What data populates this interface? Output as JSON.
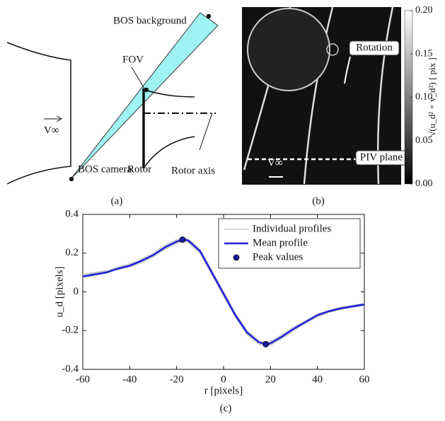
{
  "diagram": {
    "labels": {
      "background": "BOS background",
      "fov": "FOV",
      "freestream": "V∞",
      "rotor": "Rotor",
      "rotor_axis": "Rotor axis",
      "camera": "BOS camera"
    },
    "caption": "(a)"
  },
  "image_panel": {
    "labels": {
      "rotation": "Rotation",
      "piv_plane": "PIV plane",
      "freestream": "V∞"
    },
    "caption": "(b)",
    "colorbar": {
      "label": "√(u_d² + v_d²) [ pix ]",
      "lim": [
        0,
        0.2
      ],
      "ticks": [
        {
          "value": 0,
          "label": "0.00"
        },
        {
          "value": 0.05,
          "label": "0.05"
        },
        {
          "value": 0.1,
          "label": "0.10"
        },
        {
          "value": 0.15,
          "label": "0.15"
        },
        {
          "value": 0.2,
          "label": "0.20"
        }
      ]
    }
  },
  "chart_data": {
    "type": "line",
    "caption": "(c)",
    "xlabel": "r [pixels]",
    "ylabel": "u_d [pixels]",
    "xlim": [
      -60,
      60
    ],
    "ylim": [
      -0.4,
      0.4
    ],
    "xticks": [
      -60,
      -40,
      -20,
      0,
      20,
      40,
      60
    ],
    "yticks": [
      -0.4,
      -0.2,
      0,
      0.2,
      0.4
    ],
    "legend": "upper right",
    "x": [
      -60,
      -55,
      -50,
      -45,
      -40,
      -35,
      -30,
      -25,
      -20,
      -17,
      -15,
      -10,
      -5,
      0,
      5,
      10,
      15,
      18,
      20,
      25,
      30,
      35,
      40,
      45,
      50,
      55,
      60
    ],
    "series": [
      {
        "name": "Individual profiles",
        "color": "#c8c8c8",
        "values": [
          [
            0.07,
            0.085,
            0.1,
            0.125,
            0.14,
            0.17,
            0.2,
            0.24,
            0.27,
            0.28,
            0.27,
            0.22,
            0.11,
            0.0,
            -0.11,
            -0.2,
            -0.25,
            -0.26,
            -0.255,
            -0.22,
            -0.18,
            -0.15,
            -0.115,
            -0.095,
            -0.08,
            -0.07,
            -0.06
          ],
          [
            0.09,
            0.1,
            0.11,
            0.115,
            0.13,
            0.15,
            0.18,
            0.22,
            0.25,
            0.26,
            0.255,
            0.2,
            0.09,
            -0.02,
            -0.13,
            -0.22,
            -0.27,
            -0.28,
            -0.275,
            -0.24,
            -0.2,
            -0.16,
            -0.13,
            -0.105,
            -0.09,
            -0.08,
            -0.07
          ],
          [
            0.08,
            0.095,
            0.105,
            0.13,
            0.145,
            0.165,
            0.19,
            0.225,
            0.255,
            0.265,
            0.26,
            0.215,
            0.1,
            -0.01,
            -0.12,
            -0.21,
            -0.26,
            -0.275,
            -0.27,
            -0.235,
            -0.19,
            -0.15,
            -0.125,
            -0.1,
            -0.08,
            -0.075,
            -0.065
          ]
        ]
      },
      {
        "name": "Mean profile",
        "color": "#1f1fd6",
        "values": [
          0.08,
          0.09,
          0.1,
          0.12,
          0.135,
          0.16,
          0.19,
          0.23,
          0.26,
          0.27,
          0.265,
          0.21,
          0.1,
          -0.01,
          -0.12,
          -0.21,
          -0.26,
          -0.27,
          -0.265,
          -0.23,
          -0.19,
          -0.155,
          -0.12,
          -0.1,
          -0.085,
          -0.075,
          -0.065
        ]
      },
      {
        "name": "Peak values",
        "color": "#1a1aa0",
        "x": [
          -17.5,
          18
        ],
        "values": [
          0.27,
          -0.27
        ]
      }
    ]
  }
}
